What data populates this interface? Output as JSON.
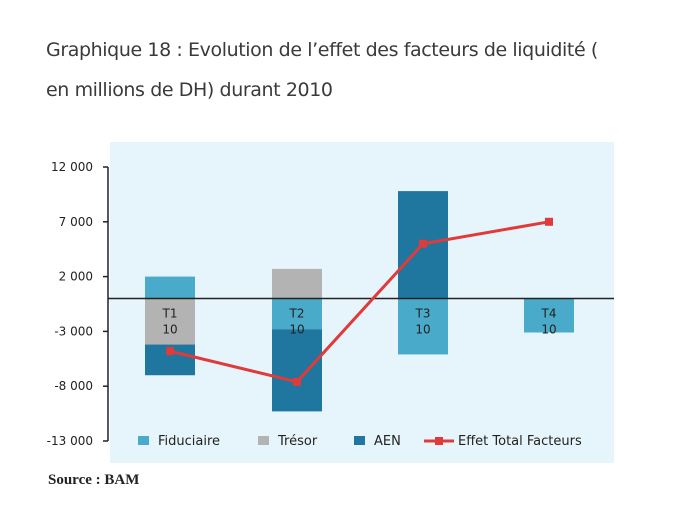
{
  "title": "Graphique 18 : Evolution de l’effet des facteurs de liquidité ( en millions de DH) durant 2010",
  "source": "Source : BAM",
  "colors": {
    "fiduciaire": "#4aaac9",
    "tresor": "#b3b3b3",
    "aen": "#1f77a0",
    "effet_total": "#e03a3a",
    "plot_bg": "#e6f5fb",
    "axis": "#222222"
  },
  "chart_data": {
    "type": "bar",
    "stacked": true,
    "title": "Graphique 18 : Evolution de l’effet des facteurs de liquidité ( en millions de DH) durant 2010",
    "categories": [
      "T1",
      "T2",
      "T3",
      "T4"
    ],
    "category_sublabels": [
      "10",
      "10",
      "10",
      "10"
    ],
    "ylim": [
      -13000,
      12000
    ],
    "yticks": [
      12000,
      7000,
      2000,
      -3000,
      -8000,
      -13000
    ],
    "ytick_labels": [
      "12 000",
      "7 000",
      "2 000",
      "-3 000",
      "-8 000",
      "-13 000"
    ],
    "xlabel": "",
    "ylabel": "",
    "series": [
      {
        "name": "Fiduciaire",
        "kind": "bar",
        "values": [
          2000,
          -2800,
          -5100,
          -3100
        ]
      },
      {
        "name": "Trésor",
        "kind": "bar",
        "values": [
          -4200,
          2700,
          0,
          0
        ]
      },
      {
        "name": "AEN",
        "kind": "bar",
        "values": [
          -2800,
          -7500,
          9800,
          0
        ]
      },
      {
        "name": "Effet Total Facteurs",
        "kind": "line",
        "values": [
          -4800,
          -7600,
          5000,
          7000
        ]
      }
    ],
    "legend": [
      "Fiduciaire",
      "Trésor",
      "AEN",
      "Effet Total Facteurs"
    ],
    "legend_position": "bottom"
  }
}
